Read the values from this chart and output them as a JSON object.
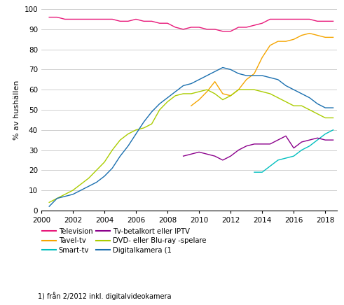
{
  "title": "",
  "ylabel": "% av hushällen",
  "footnote": "1) från 2/2012 inkl. digitalvideokamera",
  "xlim": [
    2000,
    2018.75
  ],
  "ylim": [
    0,
    100
  ],
  "yticks": [
    0,
    10,
    20,
    30,
    40,
    50,
    60,
    70,
    80,
    90,
    100
  ],
  "xticks": [
    2000,
    2002,
    2004,
    2006,
    2008,
    2010,
    2012,
    2014,
    2016,
    2018
  ],
  "legend": [
    {
      "label": "Television",
      "color": "#E8197A"
    },
    {
      "label": "Tavel-tv",
      "color": "#F5A500"
    },
    {
      "label": "Smart-tv",
      "color": "#00BFBF"
    },
    {
      "label": "Tv-betalkort eller IPTV",
      "color": "#8B008B"
    },
    {
      "label": "DVD- eller Blu-ray -spelare",
      "color": "#AACC00"
    },
    {
      "label": "Digitalkamera (1",
      "color": "#1A6FAF"
    }
  ],
  "series": {
    "Television": {
      "color": "#E8197A",
      "x": [
        2000.5,
        2001.0,
        2001.5,
        2002.0,
        2002.5,
        2003.0,
        2003.5,
        2004.0,
        2004.5,
        2005.0,
        2005.5,
        2006.0,
        2006.5,
        2007.0,
        2007.5,
        2008.0,
        2008.5,
        2009.0,
        2009.5,
        2010.0,
        2010.5,
        2011.0,
        2011.5,
        2012.0,
        2012.5,
        2013.0,
        2013.5,
        2014.0,
        2014.5,
        2015.0,
        2015.5,
        2016.0,
        2016.5,
        2017.0,
        2017.5,
        2018.0,
        2018.5
      ],
      "y": [
        96,
        96,
        95,
        95,
        95,
        95,
        95,
        95,
        95,
        94,
        94,
        95,
        94,
        94,
        93,
        93,
        91,
        90,
        91,
        91,
        90,
        90,
        89,
        89,
        91,
        91,
        92,
        93,
        95,
        95,
        95,
        95,
        95,
        95,
        94,
        94,
        94
      ]
    },
    "Tavel_tv": {
      "color": "#F5A500",
      "x": [
        2009.5,
        2010.0,
        2010.5,
        2011.0,
        2011.5,
        2012.0,
        2012.5,
        2013.0,
        2013.5,
        2014.0,
        2014.5,
        2015.0,
        2015.5,
        2016.0,
        2016.5,
        2017.0,
        2017.5,
        2018.0,
        2018.5
      ],
      "y": [
        52,
        55,
        59,
        64,
        58,
        57,
        60,
        65,
        68,
        76,
        82,
        84,
        84,
        85,
        87,
        88,
        87,
        86,
        86
      ]
    },
    "Smart_tv": {
      "color": "#00BFBF",
      "x": [
        2013.5,
        2014.0,
        2014.5,
        2015.0,
        2015.5,
        2016.0,
        2016.5,
        2017.0,
        2017.5,
        2018.0,
        2018.5
      ],
      "y": [
        19,
        19,
        22,
        25,
        26,
        27,
        30,
        32,
        35,
        38,
        40
      ]
    },
    "Betalkort": {
      "color": "#8B008B",
      "x": [
        2009.0,
        2009.5,
        2010.0,
        2010.5,
        2011.0,
        2011.5,
        2012.0,
        2012.5,
        2013.0,
        2013.5,
        2014.0,
        2014.5,
        2015.0,
        2015.5,
        2016.0,
        2016.5,
        2017.0,
        2017.5,
        2018.0,
        2018.5
      ],
      "y": [
        27,
        28,
        29,
        28,
        27,
        25,
        27,
        30,
        32,
        33,
        33,
        33,
        35,
        37,
        31,
        34,
        35,
        36,
        35,
        35
      ]
    },
    "DVD": {
      "color": "#AACC00",
      "x": [
        2000.5,
        2001.0,
        2001.5,
        2002.0,
        2002.5,
        2003.0,
        2003.5,
        2004.0,
        2004.5,
        2005.0,
        2005.5,
        2006.0,
        2006.5,
        2007.0,
        2007.5,
        2008.0,
        2008.5,
        2009.0,
        2009.5,
        2010.0,
        2010.5,
        2011.0,
        2011.5,
        2012.0,
        2012.5,
        2013.0,
        2013.5,
        2014.0,
        2014.5,
        2015.0,
        2015.5,
        2016.0,
        2016.5,
        2017.0,
        2017.5,
        2018.0,
        2018.5
      ],
      "y": [
        4,
        6,
        8,
        10,
        13,
        16,
        20,
        24,
        30,
        35,
        38,
        40,
        41,
        43,
        50,
        54,
        57,
        58,
        58,
        59,
        60,
        58,
        55,
        57,
        60,
        60,
        60,
        59,
        58,
        56,
        54,
        52,
        52,
        50,
        48,
        46,
        46
      ]
    },
    "Digitalkamera": {
      "color": "#1A6FAF",
      "x": [
        2000.5,
        2001.0,
        2001.5,
        2002.0,
        2002.5,
        2003.0,
        2003.5,
        2004.0,
        2004.5,
        2005.0,
        2005.5,
        2006.0,
        2006.5,
        2007.0,
        2007.5,
        2008.0,
        2008.5,
        2009.0,
        2009.5,
        2010.0,
        2010.5,
        2011.0,
        2011.5,
        2012.0,
        2012.5,
        2013.0,
        2013.5,
        2014.0,
        2014.5,
        2015.0,
        2015.5,
        2016.0,
        2016.5,
        2017.0,
        2017.5,
        2018.0,
        2018.5
      ],
      "y": [
        2,
        6,
        7,
        8,
        10,
        12,
        14,
        17,
        21,
        27,
        32,
        38,
        44,
        49,
        53,
        56,
        59,
        62,
        63,
        65,
        67,
        69,
        71,
        70,
        68,
        67,
        67,
        67,
        66,
        65,
        62,
        60,
        58,
        56,
        53,
        51,
        51
      ]
    }
  }
}
